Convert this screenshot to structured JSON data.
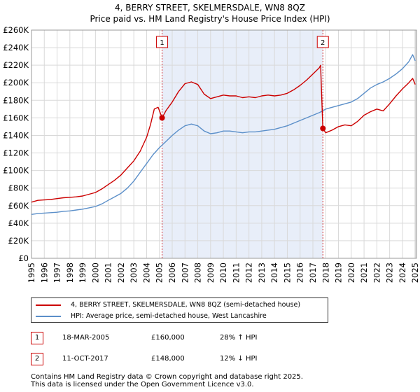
{
  "header": {
    "title": "4, BERRY STREET, SKELMERSDALE, WN8 8QZ",
    "subtitle": "Price paid vs. HM Land Registry's House Price Index (HPI)"
  },
  "colors": {
    "property": "#cc0000",
    "hpi": "#5b8fc9",
    "shade": "#e8eef9",
    "grid": "#d9d9d9",
    "marker_border": "#cc0000"
  },
  "legend": {
    "property_label": "4, BERRY STREET, SKELMERSDALE, WN8 8QZ (semi-detached house)",
    "hpi_label": "HPI: Average price, semi-detached house, West Lancashire"
  },
  "sales": [
    {
      "marker": "1",
      "date": "18-MAR-2005",
      "price": "£160,000",
      "hpi_diff": "28% ↑ HPI"
    },
    {
      "marker": "2",
      "date": "11-OCT-2017",
      "price": "£148,000",
      "hpi_diff": "12% ↓ HPI"
    }
  ],
  "footer": {
    "line1": "Contains HM Land Registry data © Crown copyright and database right 2025.",
    "line2": "This data is licensed under the Open Government Licence v3.0."
  },
  "chart_data": {
    "type": "line",
    "title": "4, BERRY STREET, SKELMERSDALE, WN8 8QZ",
    "subtitle": "Price paid vs. HM Land Registry's House Price Index (HPI)",
    "xlabel": "",
    "ylabel": "",
    "xlim": [
      1995,
      2025.1
    ],
    "ylim": [
      0,
      260000
    ],
    "grid": true,
    "legend_position": "below",
    "x_ticks": [
      "1995",
      "1996",
      "1997",
      "1998",
      "1999",
      "2000",
      "2001",
      "2002",
      "2003",
      "2004",
      "2005",
      "2006",
      "2007",
      "2008",
      "2009",
      "2010",
      "2011",
      "2012",
      "2013",
      "2014",
      "2015",
      "2016",
      "2017",
      "2018",
      "2019",
      "2020",
      "2021",
      "2022",
      "2023",
      "2024",
      "2025"
    ],
    "y_ticks": [
      {
        "value": 0,
        "label": "£0"
      },
      {
        "value": 20000,
        "label": "£20K"
      },
      {
        "value": 40000,
        "label": "£40K"
      },
      {
        "value": 60000,
        "label": "£60K"
      },
      {
        "value": 80000,
        "label": "£80K"
      },
      {
        "value": 100000,
        "label": "£100K"
      },
      {
        "value": 120000,
        "label": "£120K"
      },
      {
        "value": 140000,
        "label": "£140K"
      },
      {
        "value": 160000,
        "label": "£160K"
      },
      {
        "value": 180000,
        "label": "£180K"
      },
      {
        "value": 200000,
        "label": "£200K"
      },
      {
        "value": 220000,
        "label": "£220K"
      },
      {
        "value": 240000,
        "label": "£240K"
      },
      {
        "value": 260000,
        "label": "£260K"
      }
    ],
    "shaded_range": [
      2005.21,
      2017.78
    ],
    "markers": [
      {
        "label": "1",
        "x": 2005.21,
        "y": 160000
      },
      {
        "label": "2",
        "x": 2017.78,
        "y": 148000
      }
    ],
    "series": [
      {
        "name": "4, BERRY STREET, SKELMERSDALE, WN8 8QZ (semi-detached house)",
        "color": "#cc0000",
        "x": [
          1995.0,
          1995.5,
          1996.0,
          1996.5,
          1997.0,
          1997.5,
          1998.0,
          1998.5,
          1999.0,
          1999.5,
          2000.0,
          2000.5,
          2001.0,
          2001.5,
          2002.0,
          2002.5,
          2003.0,
          2003.5,
          2004.0,
          2004.3,
          2004.6,
          2004.9,
          2005.21,
          2005.5,
          2006.0,
          2006.5,
          2007.0,
          2007.5,
          2008.0,
          2008.5,
          2009.0,
          2009.5,
          2010.0,
          2010.5,
          2011.0,
          2011.5,
          2012.0,
          2012.5,
          2013.0,
          2013.5,
          2014.0,
          2014.5,
          2015.0,
          2015.5,
          2016.0,
          2016.5,
          2017.0,
          2017.5,
          2017.6,
          2017.78,
          2018.0,
          2018.5,
          2019.0,
          2019.5,
          2020.0,
          2020.5,
          2021.0,
          2021.5,
          2022.0,
          2022.5,
          2023.0,
          2023.5,
          2024.0,
          2024.5,
          2024.8,
          2025.0
        ],
        "y": [
          64000,
          66000,
          66500,
          67000,
          68000,
          69000,
          69500,
          70000,
          71000,
          73000,
          75000,
          79000,
          84000,
          89000,
          95000,
          103000,
          111000,
          122000,
          138000,
          152000,
          170000,
          172000,
          160000,
          168000,
          178000,
          190000,
          199000,
          201000,
          198000,
          187000,
          182000,
          184000,
          186000,
          185000,
          185000,
          183000,
          184000,
          183000,
          185000,
          186000,
          185000,
          186000,
          188000,
          192000,
          197000,
          203000,
          210000,
          217000,
          220000,
          148000,
          143000,
          146000,
          150000,
          152000,
          151000,
          156000,
          163000,
          167000,
          170000,
          168000,
          176000,
          185000,
          193000,
          200000,
          205000,
          198000
        ]
      },
      {
        "name": "HPI: Average price, semi-detached house, West Lancashire",
        "color": "#5b8fc9",
        "x": [
          1995.0,
          1995.5,
          1996.0,
          1996.5,
          1997.0,
          1997.5,
          1998.0,
          1998.5,
          1999.0,
          1999.5,
          2000.0,
          2000.5,
          2001.0,
          2001.5,
          2002.0,
          2002.5,
          2003.0,
          2003.5,
          2004.0,
          2004.5,
          2005.0,
          2005.5,
          2006.0,
          2006.5,
          2007.0,
          2007.5,
          2008.0,
          2008.5,
          2009.0,
          2009.5,
          2010.0,
          2010.5,
          2011.0,
          2011.5,
          2012.0,
          2012.5,
          2013.0,
          2013.5,
          2014.0,
          2014.5,
          2015.0,
          2015.5,
          2016.0,
          2016.5,
          2017.0,
          2017.5,
          2017.78,
          2018.0,
          2018.5,
          2019.0,
          2019.5,
          2020.0,
          2020.5,
          2021.0,
          2021.5,
          2022.0,
          2022.5,
          2023.0,
          2023.5,
          2024.0,
          2024.5,
          2024.8,
          2025.0
        ],
        "y": [
          50000,
          51000,
          51500,
          52000,
          52500,
          53500,
          54000,
          55000,
          56000,
          57500,
          59000,
          62000,
          66000,
          70000,
          74000,
          80000,
          88000,
          98000,
          108000,
          118000,
          126000,
          133000,
          140000,
          146000,
          151000,
          153000,
          151000,
          145000,
          142000,
          143000,
          145000,
          145000,
          144000,
          143000,
          144000,
          144000,
          145000,
          146000,
          147000,
          149000,
          151000,
          154000,
          157000,
          160000,
          163000,
          166000,
          168000,
          170000,
          172000,
          174000,
          176000,
          178000,
          182000,
          188000,
          194000,
          198000,
          201000,
          205000,
          210000,
          216000,
          224000,
          232000,
          225000
        ]
      }
    ]
  }
}
